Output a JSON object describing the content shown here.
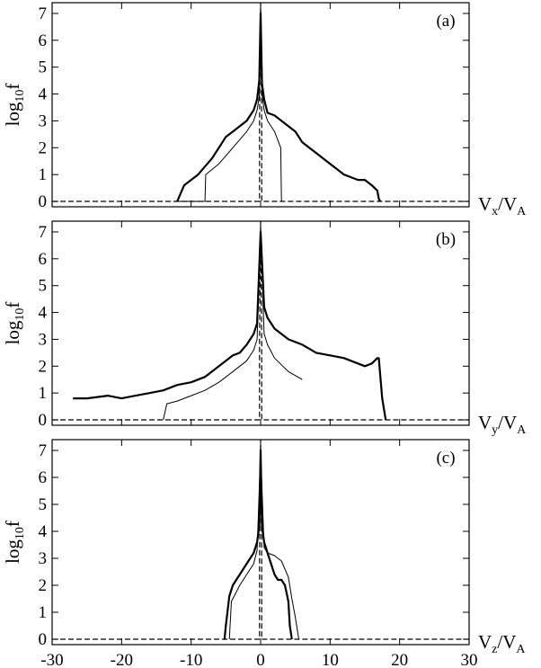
{
  "chart_data": [
    {
      "panel": "(a)",
      "type": "line",
      "xlabel": {
        "base": "V",
        "sub": "x",
        "mid": "/V",
        "sub2": "A"
      },
      "ylabel": {
        "base": "log",
        "sub": "10",
        "rest": "f"
      },
      "xlim": [
        -30,
        30
      ],
      "ylim": [
        -0.2,
        7.4
      ],
      "yticks": [
        0,
        1,
        2,
        3,
        4,
        5,
        6,
        7
      ],
      "series": [
        {
          "style": "thick",
          "x": [
            -12,
            -11,
            -10,
            -9,
            -8,
            -7,
            -6,
            -5,
            -4,
            -3,
            -2,
            -1.5,
            -1,
            -0.5,
            -0.2,
            0,
            0.2,
            0.5,
            1,
            2,
            3,
            4,
            5,
            6,
            7,
            8,
            9,
            10,
            11,
            12,
            13,
            14,
            15,
            16,
            16.8,
            17,
            17.2
          ],
          "y": [
            0,
            0.6,
            0.8,
            1.0,
            1.3,
            1.6,
            2.0,
            2.4,
            2.6,
            2.8,
            3.0,
            3.2,
            3.4,
            3.8,
            4.5,
            7.0,
            4.4,
            3.8,
            3.3,
            3.2,
            3.0,
            2.8,
            2.6,
            2.2,
            2.0,
            1.8,
            1.6,
            1.4,
            1.2,
            1.0,
            0.9,
            0.8,
            0.8,
            0.6,
            0.4,
            0.1,
            0
          ]
        },
        {
          "style": "thin",
          "x": [
            -12,
            -8,
            -7.9,
            -6,
            -4,
            -2,
            -1,
            -0.5,
            -0.2,
            0,
            0.2,
            0.5,
            1,
            2,
            2.9,
            3.0
          ],
          "y": [
            0,
            0,
            1.0,
            1.4,
            2.0,
            2.6,
            3.0,
            3.4,
            3.9,
            7.2,
            4.0,
            3.4,
            3.0,
            2.6,
            2.0,
            0
          ]
        },
        {
          "style": "dashed",
          "x": [
            -30,
            -0.15,
            -0.15,
            0,
            0.15,
            0.15,
            30
          ],
          "y": [
            0,
            0,
            3.0,
            7.4,
            3.0,
            0,
            0
          ]
        }
      ]
    },
    {
      "panel": "(b)",
      "type": "line",
      "xlabel": {
        "base": "V",
        "sub": "y",
        "mid": "/V",
        "sub2": "A"
      },
      "ylabel": {
        "base": "log",
        "sub": "10",
        "rest": "f"
      },
      "xlim": [
        -30,
        30
      ],
      "ylim": [
        -0.2,
        7.4
      ],
      "yticks": [
        0,
        1,
        2,
        3,
        4,
        5,
        6,
        7
      ],
      "series": [
        {
          "style": "thick",
          "x": [
            -27,
            -25,
            -22,
            -20,
            -18,
            -16,
            -14,
            -12,
            -10,
            -8,
            -6,
            -4,
            -3,
            -2,
            -1,
            -0.5,
            0,
            0.5,
            1,
            2,
            4,
            6,
            8,
            10,
            12,
            14,
            15,
            16,
            16.8,
            17,
            17.5,
            18
          ],
          "y": [
            0.8,
            0.8,
            0.9,
            0.8,
            0.9,
            1.0,
            1.1,
            1.3,
            1.4,
            1.6,
            2.0,
            2.4,
            2.5,
            2.8,
            3.2,
            3.6,
            7.0,
            4.2,
            3.8,
            3.4,
            3.0,
            2.8,
            2.5,
            2.4,
            2.3,
            2.1,
            2.0,
            2.1,
            2.3,
            2.3,
            0.8,
            0
          ]
        },
        {
          "style": "thin",
          "x": [
            -14,
            -13.5,
            -12,
            -10,
            -8,
            -6,
            -4,
            -2,
            -1,
            -0.5,
            0,
            0.5,
            1,
            2,
            4,
            6
          ],
          "y": [
            0,
            0.6,
            0.7,
            0.9,
            1.1,
            1.4,
            1.8,
            2.2,
            2.6,
            3.0,
            7.0,
            3.2,
            2.8,
            2.3,
            1.8,
            1.5
          ]
        },
        {
          "style": "dashed",
          "x": [
            -30,
            -0.15,
            -0.15,
            0,
            0.15,
            0.15,
            30
          ],
          "y": [
            0,
            0,
            3.0,
            7.4,
            3.0,
            0,
            0
          ]
        }
      ]
    },
    {
      "panel": "(c)",
      "type": "line",
      "xlabel": {
        "base": "V",
        "sub": "z",
        "mid": "/V",
        "sub2": "A"
      },
      "ylabel": {
        "base": "log",
        "sub": "10",
        "rest": "f"
      },
      "xlim": [
        -30,
        30
      ],
      "ylim": [
        -0.2,
        7.4
      ],
      "yticks": [
        0,
        1,
        2,
        3,
        4,
        5,
        6,
        7
      ],
      "xticks": [
        -30,
        -20,
        -10,
        0,
        10,
        20,
        30
      ],
      "series": [
        {
          "style": "thick",
          "x": [
            -5.2,
            -5,
            -4.5,
            -4,
            -3.5,
            -3,
            -2,
            -1.5,
            -1,
            -0.5,
            -0.2,
            0,
            0.2,
            0.5,
            1,
            1.5,
            2,
            2.5,
            3,
            3.5,
            4,
            4.2,
            4.5
          ],
          "y": [
            0,
            0.5,
            1.6,
            2.0,
            2.2,
            2.4,
            2.8,
            3.0,
            3.2,
            3.6,
            4.2,
            7.0,
            4.2,
            3.6,
            3.2,
            2.8,
            2.4,
            2.2,
            2.2,
            2.0,
            1.4,
            0.5,
            0
          ]
        },
        {
          "style": "thin",
          "x": [
            -4.5,
            -4.2,
            -3,
            -2,
            -1,
            -0.5,
            0,
            0.5,
            1,
            2,
            3,
            4,
            4.5,
            5,
            5.5
          ],
          "y": [
            0,
            1.4,
            2.0,
            2.4,
            2.8,
            3.3,
            7.0,
            3.4,
            3.2,
            3.1,
            2.9,
            2.3,
            1.5,
            0.8,
            0
          ]
        },
        {
          "style": "dashed",
          "x": [
            -30,
            -0.15,
            -0.15,
            0,
            0.15,
            0.15,
            30
          ],
          "y": [
            0,
            0,
            3.0,
            7.4,
            3.0,
            0,
            0
          ]
        }
      ]
    }
  ]
}
